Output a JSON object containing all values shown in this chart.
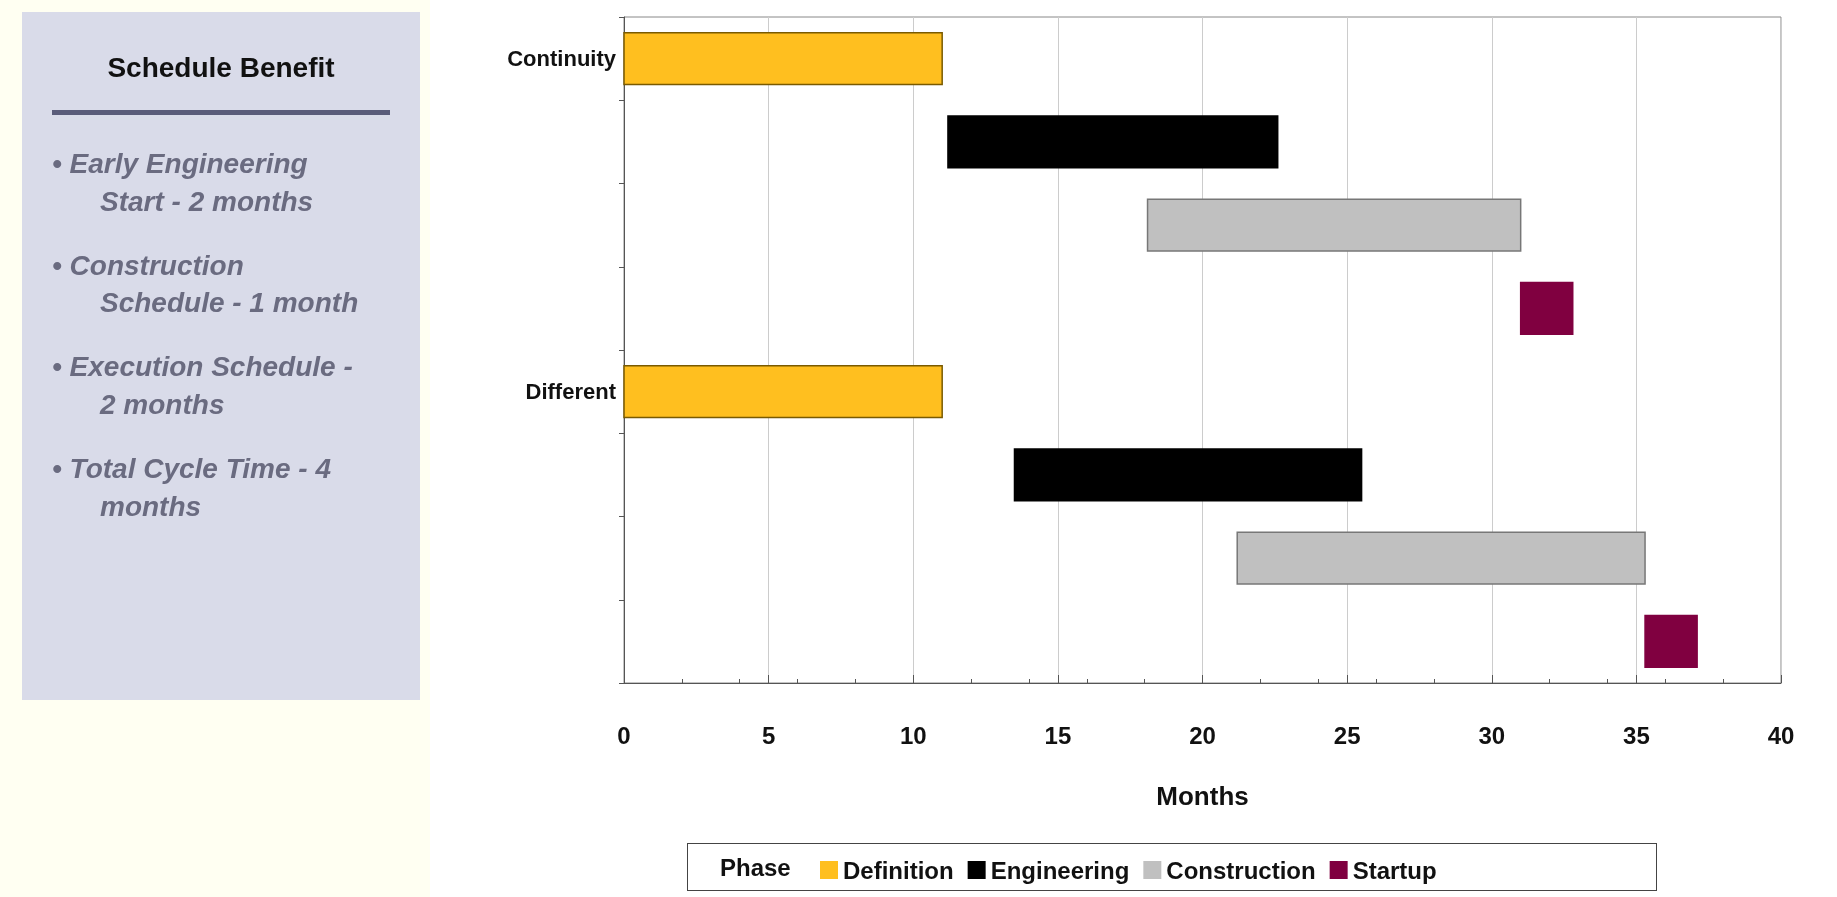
{
  "chart_data": [
    {
      "type": "other",
      "title": "Schedule Benefit",
      "annotations": [
        "• Early Engineering Start - 2 months",
        "• Construction Schedule - 1 month",
        "• Execution Schedule - 2 months",
        "• Total Cycle Time - 4 months"
      ]
    },
    {
      "type": "bar",
      "orientation": "horizontal",
      "categories": [
        "Continuity",
        null,
        null,
        null,
        "Different",
        null,
        null,
        null
      ],
      "series": [
        {
          "name": "Definition",
          "color": "#ffbf1f",
          "base": [
            0,
            null,
            null,
            null,
            0,
            null,
            null,
            null
          ],
          "values": [
            11.0,
            null,
            null,
            null,
            11.0,
            null,
            null,
            null
          ]
        },
        {
          "name": "Engineering",
          "color": "#000000",
          "base": [
            null,
            11.2,
            null,
            null,
            null,
            13.5,
            null,
            null
          ],
          "values": [
            null,
            11.4,
            null,
            null,
            null,
            12.0,
            null,
            null
          ]
        },
        {
          "name": "Construction",
          "color": "#c0c0c0",
          "base": [
            null,
            null,
            18.1,
            null,
            null,
            null,
            21.2,
            null
          ],
          "values": [
            null,
            null,
            12.9,
            null,
            null,
            null,
            14.1,
            null
          ]
        },
        {
          "name": "Startup",
          "color": "#800040",
          "base": [
            null,
            null,
            null,
            31.0,
            null,
            null,
            null,
            35.3
          ],
          "values": [
            null,
            null,
            null,
            1.8,
            null,
            null,
            null,
            1.8
          ]
        }
      ],
      "xlabel": "Months",
      "xlim": [
        0,
        40
      ],
      "xticks": [
        0,
        5,
        10,
        15,
        20,
        25,
        30,
        35,
        40
      ],
      "grid": "x",
      "legend": "bottom",
      "legend_title": "Phase"
    }
  ]
}
